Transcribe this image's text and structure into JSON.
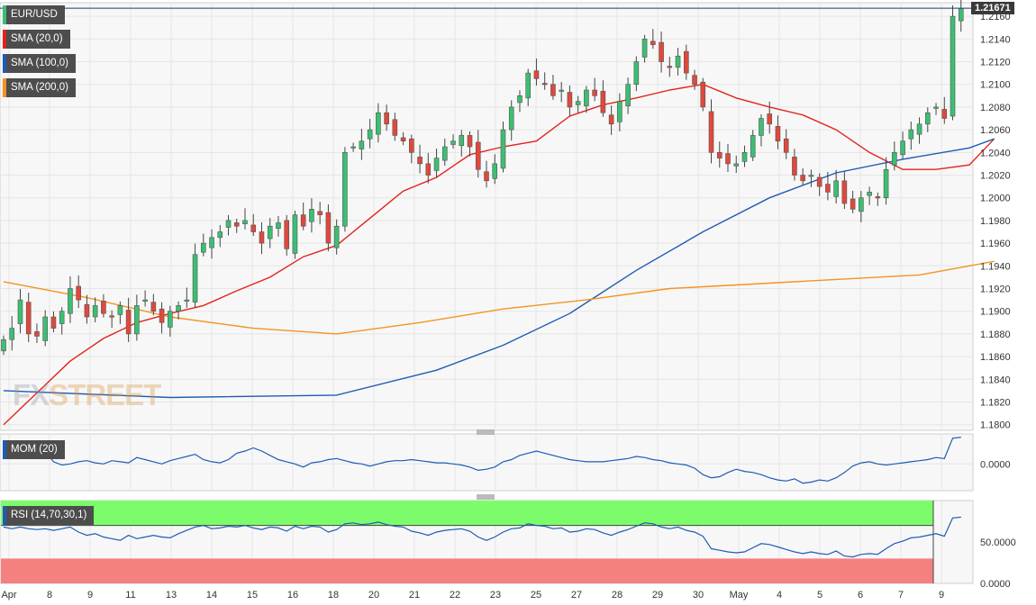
{
  "chart_data": [
    {
      "type": "candlestick",
      "title": "EUR/USD",
      "timeframe_note": "",
      "x_tick_labels": [
        "Apr",
        "8",
        "9",
        "11",
        "13",
        "14",
        "15",
        "16",
        "18",
        "20",
        "21",
        "22",
        "23",
        "25",
        "27",
        "28",
        "29",
        "30",
        "May",
        "4",
        "5",
        "6",
        "7",
        "9"
      ],
      "ylim": [
        1.1795,
        1.2172
      ],
      "y_ticks": [
        "1.2160",
        "1.2140",
        "1.2120",
        "1.2100",
        "1.2080",
        "1.2060",
        "1.2040",
        "1.2020",
        "1.2000",
        "1.1980",
        "1.1960",
        "1.1940",
        "1.1920",
        "1.1900",
        "1.1880",
        "1.1860",
        "1.1840",
        "1.1820",
        "1.1800"
      ],
      "last_price_label": "1.21671",
      "close_path": [
        1.1875,
        1.1885,
        1.191,
        1.188,
        1.1878,
        1.1895,
        1.1885,
        1.19,
        1.192,
        1.191,
        1.1895,
        1.1905,
        1.1898,
        1.1895,
        1.1905,
        1.188,
        1.1905,
        1.191,
        1.19,
        1.189,
        1.19,
        1.1905,
        1.191,
        1.195,
        1.196,
        1.1965,
        1.197,
        1.198,
        1.1975,
        1.198,
        1.197,
        1.196,
        1.1975,
        1.1978,
        1.1955,
        1.1985,
        1.1975,
        1.199,
        1.1985,
        1.196,
        1.1975,
        1.204,
        1.2045,
        1.205,
        1.206,
        1.2075,
        1.2065,
        1.2055,
        1.205,
        1.204,
        1.203,
        1.202,
        1.2035,
        1.2045,
        1.205,
        1.2055,
        1.2045,
        1.2025,
        1.2015,
        1.203,
        1.206,
        1.208,
        1.209,
        1.211,
        1.2105,
        1.21,
        1.209,
        1.2095,
        1.208,
        1.2085,
        1.2095,
        1.209,
        1.2075,
        1.2065,
        1.2085,
        1.21,
        1.212,
        1.214,
        1.2135,
        1.212,
        1.2115,
        1.2125,
        1.211,
        1.21,
        1.208,
        1.204,
        1.2035,
        1.203,
        1.203,
        1.204,
        1.2055,
        1.207,
        1.2065,
        1.205,
        1.204,
        1.202,
        1.2015,
        1.202,
        1.201,
        1.2005,
        1.2015,
        1.1995,
        1.199,
        1.2,
        1.2005,
        1.2,
        1.2025,
        1.204,
        1.205,
        1.206,
        1.2065,
        1.2075,
        1.208,
        1.207,
        1.216,
        1.2167
      ],
      "volatility": 0.0012,
      "overlays": [
        {
          "name": "SMA (20,0)",
          "color": "#e2231a",
          "points": [
            [
              0,
              1.18
            ],
            [
              4,
              1.1828
            ],
            [
              8,
              1.1856
            ],
            [
              12,
              1.1876
            ],
            [
              16,
              1.189
            ],
            [
              20,
              1.1898
            ],
            [
              24,
              1.1905
            ],
            [
              28,
              1.1918
            ],
            [
              32,
              1.193
            ],
            [
              36,
              1.1948
            ],
            [
              40,
              1.1958
            ],
            [
              44,
              1.1982
            ],
            [
              48,
              1.2006
            ],
            [
              52,
              1.2018
            ],
            [
              56,
              1.2038
            ],
            [
              60,
              1.2045
            ],
            [
              64,
              1.205
            ],
            [
              68,
              1.2072
            ],
            [
              72,
              1.2082
            ],
            [
              76,
              1.2088
            ],
            [
              80,
              1.2095
            ],
            [
              84,
              1.21
            ],
            [
              88,
              1.2088
            ],
            [
              92,
              1.208
            ],
            [
              96,
              1.2073
            ],
            [
              100,
              1.206
            ],
            [
              104,
              1.204
            ],
            [
              108,
              1.2025
            ],
            [
              112,
              1.2025
            ],
            [
              116,
              1.2029
            ],
            [
              119,
              1.2052
            ]
          ]
        },
        {
          "name": "SMA (100,0)",
          "color": "#1f5bb5",
          "points": [
            [
              0,
              1.183
            ],
            [
              20,
              1.1824
            ],
            [
              40,
              1.1826
            ],
            [
              52,
              1.1848
            ],
            [
              60,
              1.187
            ],
            [
              68,
              1.1898
            ],
            [
              76,
              1.1936
            ],
            [
              84,
              1.197
            ],
            [
              92,
              1.2
            ],
            [
              100,
              1.2022
            ],
            [
              108,
              1.2034
            ],
            [
              116,
              1.2044
            ],
            [
              119,
              1.2052
            ]
          ]
        },
        {
          "name": "SMA (200,0)",
          "color": "#f5931f",
          "points": [
            [
              0,
              1.1926
            ],
            [
              10,
              1.1912
            ],
            [
              20,
              1.1895
            ],
            [
              30,
              1.1885
            ],
            [
              40,
              1.188
            ],
            [
              50,
              1.189
            ],
            [
              60,
              1.1902
            ],
            [
              70,
              1.191
            ],
            [
              80,
              1.192
            ],
            [
              90,
              1.1924
            ],
            [
              100,
              1.1928
            ],
            [
              110,
              1.1932
            ],
            [
              116,
              1.194
            ],
            [
              119,
              1.1944
            ]
          ]
        }
      ],
      "legend": [
        "EUR/USD",
        "SMA (20,0)",
        "SMA (100,0)",
        "SMA (200,0)"
      ],
      "watermark": {
        "fx": "FX",
        "rest": "STREET"
      }
    },
    {
      "type": "line",
      "title": "MOM (20)",
      "y_ticks": [
        "0.0000"
      ],
      "ylim": [
        -0.025,
        0.028
      ],
      "color": "#1f5bb5",
      "values": [
        0.006,
        0.01,
        0.012,
        0.018,
        0.02,
        0.012,
        0.002,
        -0.001,
        0.0,
        0.002,
        0.003,
        0.001,
        0.0,
        0.003,
        0.002,
        0.001,
        0.006,
        0.004,
        0.002,
        0.0,
        0.003,
        0.005,
        0.007,
        0.009,
        0.004,
        0.002,
        0.001,
        0.004,
        0.01,
        0.012,
        0.015,
        0.012,
        0.008,
        0.004,
        0.002,
        0.0,
        -0.003,
        0.001,
        0.002,
        0.004,
        0.005,
        0.003,
        0.001,
        0.0,
        -0.002,
        0.0,
        0.002,
        0.003,
        0.003,
        0.004,
        0.003,
        0.002,
        0.001,
        0.001,
        0.0,
        -0.001,
        -0.003,
        -0.006,
        -0.005,
        -0.003,
        0.002,
        0.004,
        0.008,
        0.01,
        0.012,
        0.01,
        0.008,
        0.006,
        0.004,
        0.003,
        0.002,
        0.002,
        0.002,
        0.003,
        0.004,
        0.005,
        0.007,
        0.006,
        0.004,
        0.003,
        0.001,
        0.0,
        -0.001,
        -0.004,
        -0.01,
        -0.013,
        -0.012,
        -0.008,
        -0.005,
        -0.007,
        -0.008,
        -0.01,
        -0.013,
        -0.015,
        -0.016,
        -0.014,
        -0.018,
        -0.017,
        -0.015,
        -0.016,
        -0.013,
        -0.008,
        -0.002,
        0.001,
        0.002,
        0.0,
        -0.001,
        0.0,
        0.001,
        0.002,
        0.003,
        0.004,
        0.006,
        0.005,
        0.024,
        0.025
      ]
    },
    {
      "type": "line",
      "title": "RSI (14,70,30,1)",
      "y_ticks": [
        "50.0000",
        "0.0000"
      ],
      "ylim": [
        0,
        100
      ],
      "overbought": 70,
      "oversold": 30,
      "color": "#1f5bb5",
      "values": [
        68,
        66,
        68,
        66,
        65,
        66,
        64,
        66,
        68,
        62,
        58,
        60,
        56,
        54,
        52,
        58,
        54,
        56,
        58,
        56,
        55,
        60,
        64,
        68,
        70,
        66,
        67,
        69,
        68,
        70,
        67,
        65,
        68,
        67,
        63,
        69,
        66,
        69,
        68,
        62,
        65,
        72,
        73,
        71,
        72,
        74,
        71,
        69,
        68,
        63,
        61,
        58,
        62,
        64,
        65,
        66,
        63,
        56,
        52,
        56,
        62,
        66,
        67,
        72,
        70,
        69,
        66,
        67,
        62,
        63,
        66,
        65,
        61,
        58,
        62,
        65,
        69,
        73,
        72,
        68,
        66,
        68,
        64,
        62,
        57,
        42,
        40,
        38,
        37,
        38,
        43,
        48,
        47,
        44,
        41,
        38,
        36,
        38,
        36,
        35,
        39,
        33,
        32,
        35,
        36,
        35,
        42,
        48,
        51,
        55,
        56,
        58,
        60,
        57,
        79,
        80
      ]
    }
  ]
}
